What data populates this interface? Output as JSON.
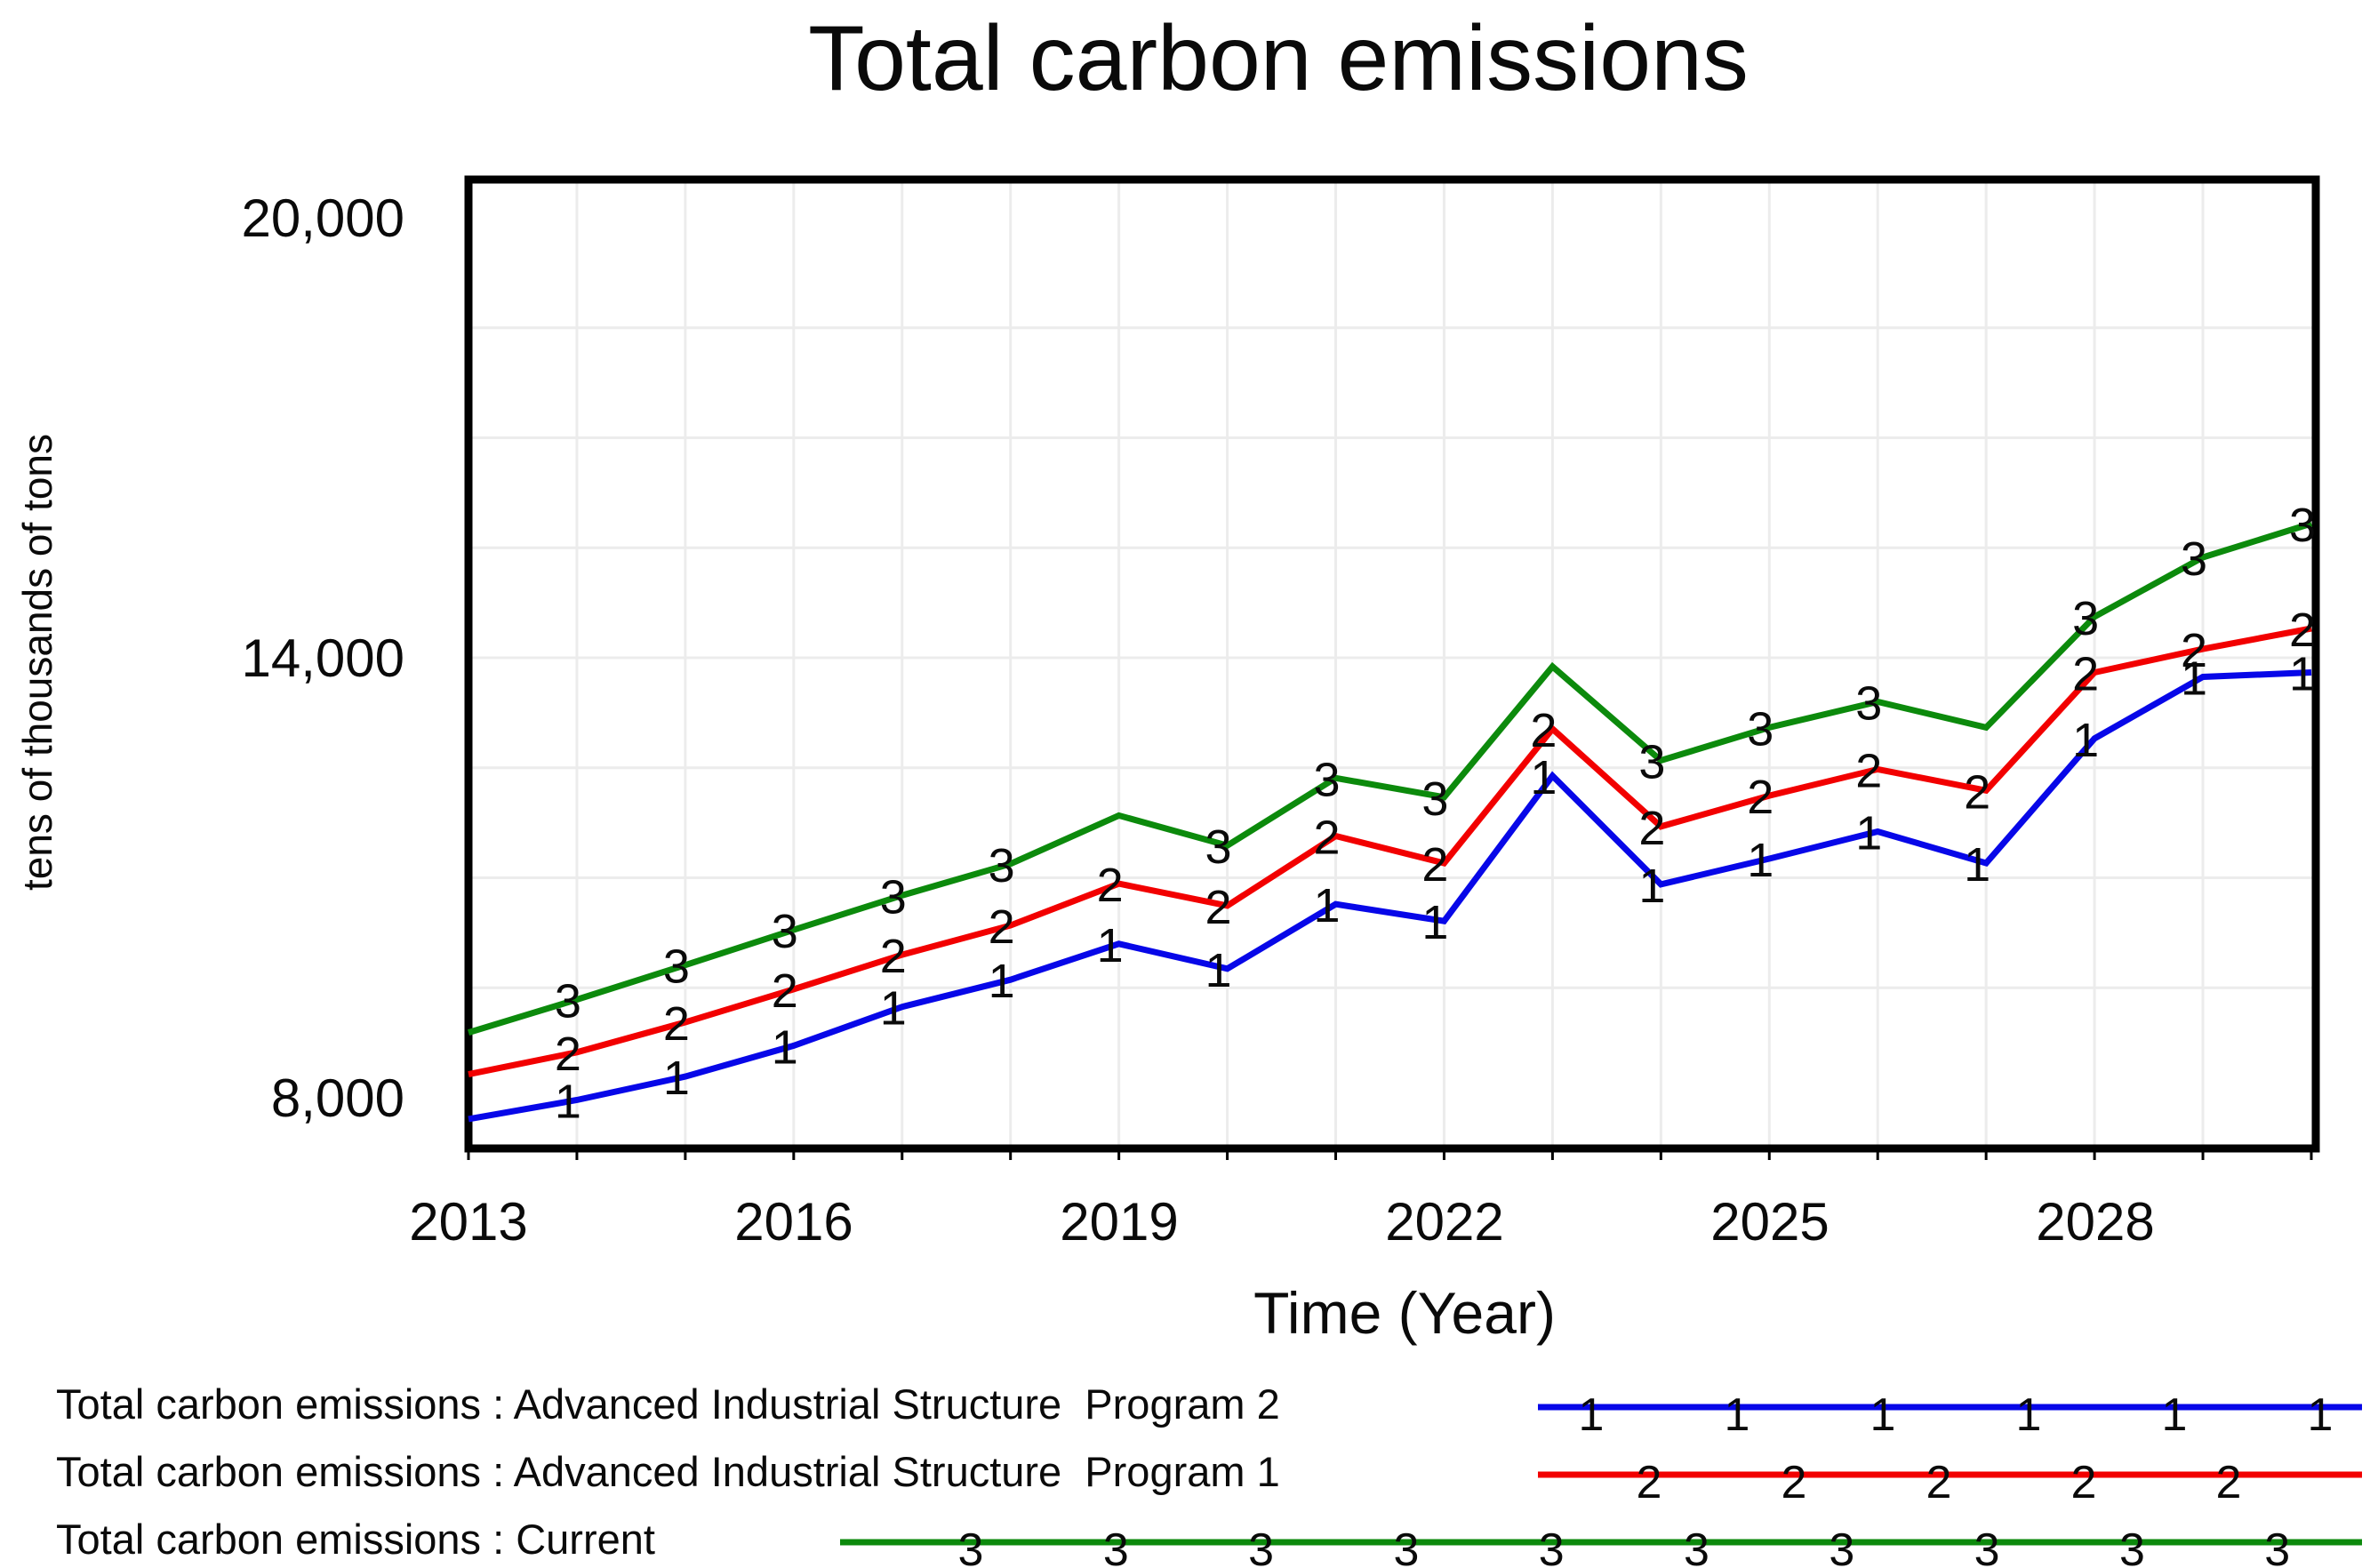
{
  "title": "Total carbon emissions",
  "axes": {
    "y_title": "tens of thousands of tons",
    "x_title": "Time (Year)",
    "y_ticks": [
      "20,000",
      "14,000",
      "8,000"
    ],
    "x_ticks": [
      "2013",
      "2016",
      "2019",
      "2022",
      "2025",
      "2028"
    ]
  },
  "chart_data": {
    "type": "line",
    "title": "Total carbon emissions",
    "xlabel": "Time (Year)",
    "ylabel": "tens of thousands of tons",
    "ylim": [
      8000,
      20000
    ],
    "y_tick_values": [
      8000,
      14000,
      20000
    ],
    "x_tick_values": [
      2013,
      2016,
      2019,
      2022,
      2025,
      2028
    ],
    "xlim": [
      2013,
      2030
    ],
    "grid": true,
    "x": [
      2013,
      2014,
      2015,
      2016,
      2017,
      2018,
      2019,
      2020,
      2021,
      2022,
      2023,
      2024,
      2025,
      2026,
      2027,
      2028,
      2029,
      2030
    ],
    "series": [
      {
        "name": "Total carbon emissions : Advanced Industrial Structure  Program 2",
        "marker": "1",
        "color": "#0707e8",
        "values": [
          7710,
          7970,
          8290,
          8710,
          9240,
          9610,
          10100,
          9760,
          10640,
          10410,
          12390,
          10910,
          11260,
          11630,
          11200,
          12900,
          13740,
          13800
        ],
        "marker_gap_years": []
      },
      {
        "name": "Total carbon emissions : Advanced Industrial Structure  Program 1",
        "marker": "2",
        "color": "#f20000",
        "values": [
          8320,
          8620,
          9030,
          9480,
          9950,
          10350,
          10920,
          10620,
          11570,
          11200,
          13030,
          11700,
          12120,
          12480,
          12190,
          13800,
          14120,
          14400
        ],
        "marker_gap_years": []
      },
      {
        "name": "Total carbon emissions : Current",
        "marker": "3",
        "color": "#0c8a0c",
        "values": [
          8890,
          9340,
          9810,
          10290,
          10760,
          11190,
          11850,
          11440,
          12360,
          12100,
          13880,
          12600,
          13050,
          13400,
          13050,
          14560,
          15370,
          15830
        ],
        "marker_gap_years": [
          2019,
          2023,
          2027
        ]
      }
    ],
    "legend_position": "bottom-left"
  },
  "legend": {
    "items": [
      {
        "label": "Total carbon emissions : Advanced Industrial Structure  Program 2",
        "marker": "1",
        "color": "#0707e8"
      },
      {
        "label": "Total carbon emissions : Advanced Industrial Structure  Program 1",
        "marker": "2",
        "color": "#f20000"
      },
      {
        "label": "Total carbon emissions : Current",
        "marker": "3",
        "color": "#0c8a0c"
      }
    ]
  }
}
